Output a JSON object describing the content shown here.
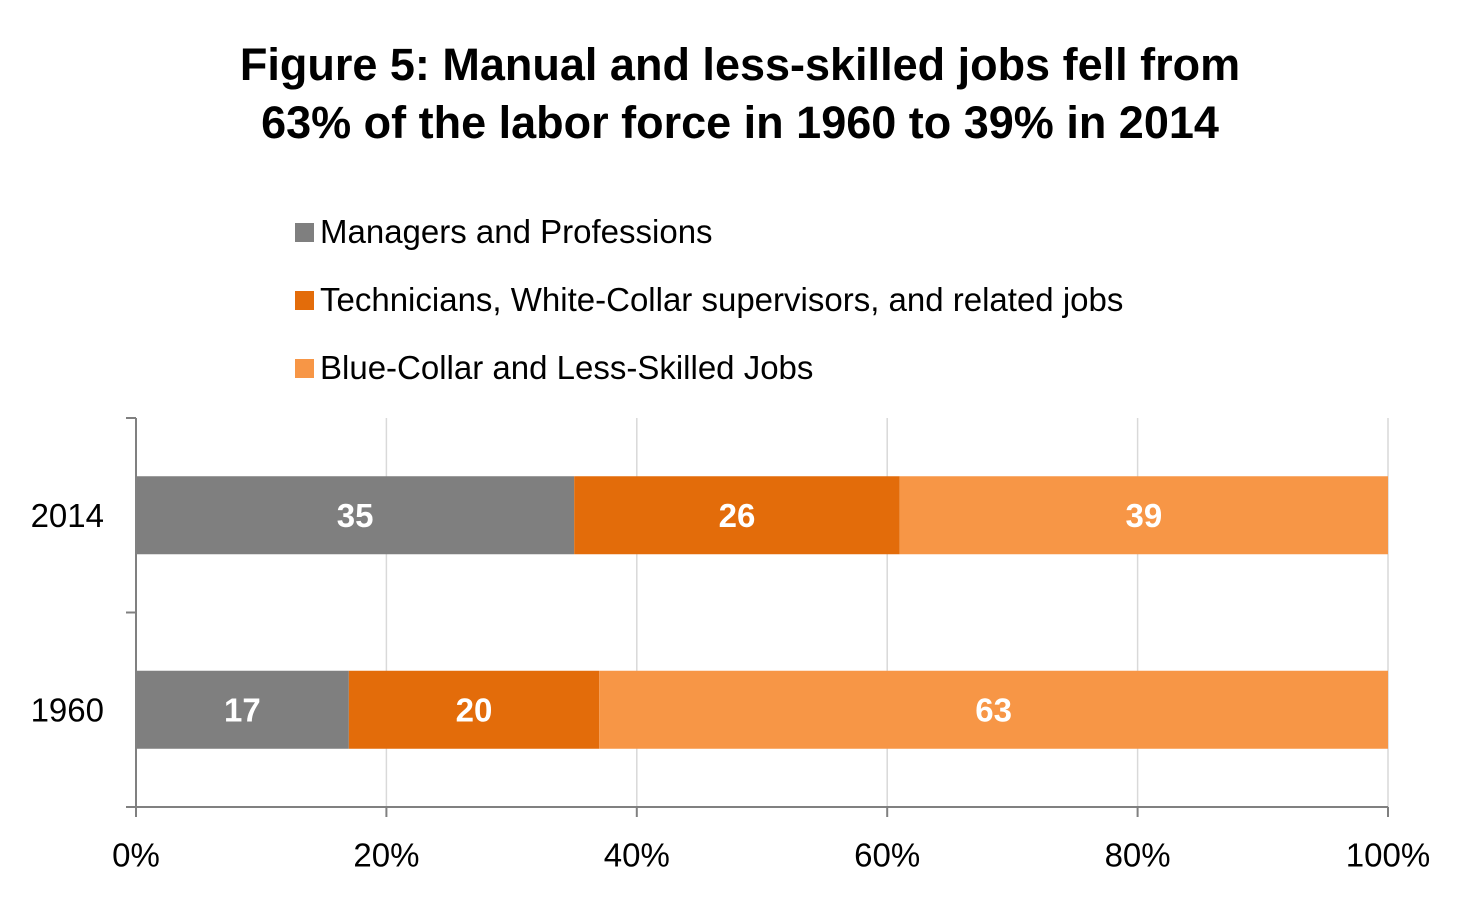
{
  "chart_data": {
    "type": "bar",
    "orientation": "horizontal",
    "stacked": true,
    "title_lines": [
      "Figure 5: Manual and less-skilled jobs fell from",
      "63% of the labor force in 1960 to 39% in 2014"
    ],
    "categories": [
      "2014",
      "1960"
    ],
    "series": [
      {
        "name": "Managers and Professions",
        "color": "#7f7f7f",
        "values": [
          35,
          17
        ]
      },
      {
        "name": "Technicians, White-Collar supervisors, and related jobs",
        "color": "#e36c0a",
        "values": [
          26,
          20
        ]
      },
      {
        "name": "Blue-Collar and Less-Skilled Jobs",
        "color": "#f79646",
        "values": [
          39,
          63
        ]
      }
    ],
    "xlim": [
      0,
      100
    ],
    "xticks": [
      0,
      20,
      40,
      60,
      80,
      100
    ],
    "xtick_labels": [
      "0%",
      "20%",
      "40%",
      "60%",
      "80%",
      "100%"
    ],
    "grid": true,
    "legend_position": "top"
  }
}
